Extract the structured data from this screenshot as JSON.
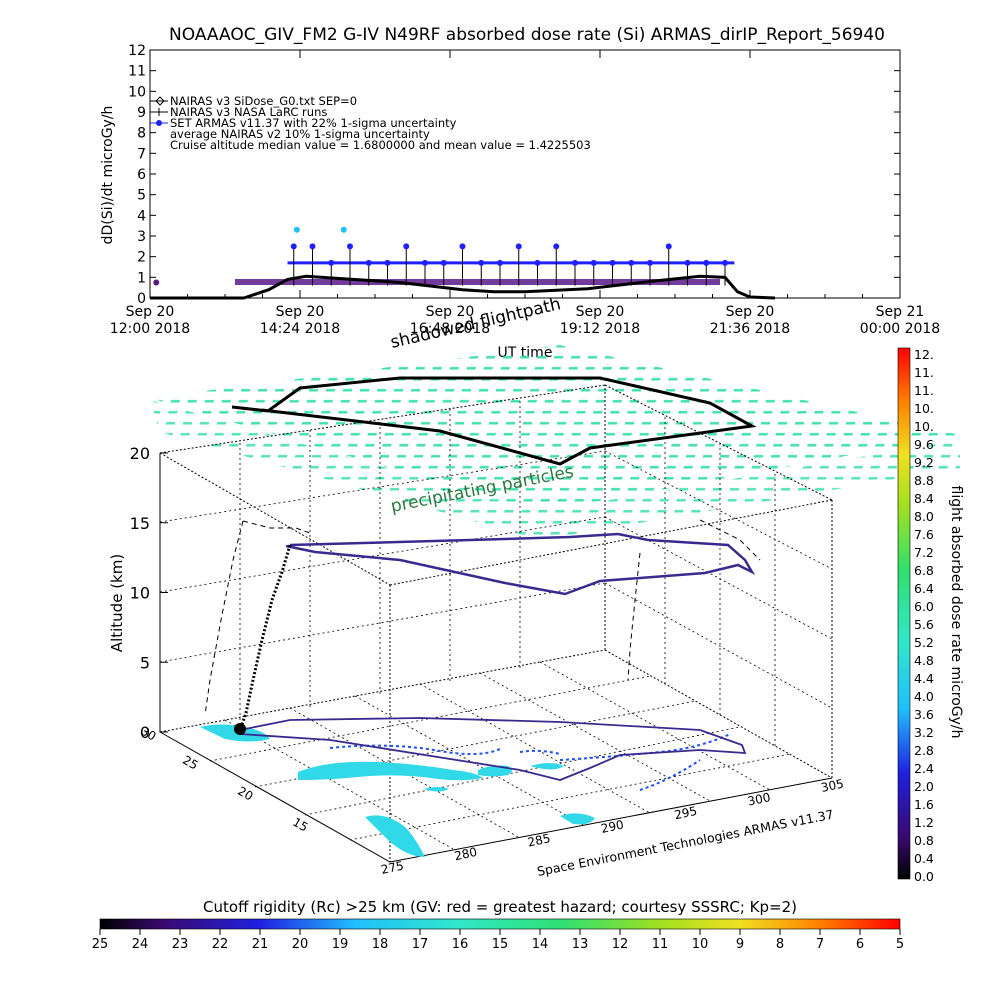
{
  "title": "NOAAAOC_GIV_FM2 G-IV    N49RF  absorbed dose rate (Si) ARMAS_dirIP_Report_56940",
  "chart_data": [
    {
      "type": "scatter",
      "ylabel": "dD(Si)/dt microGy/h",
      "xlabel": "UT time",
      "ylim": [
        0,
        12
      ],
      "yticks": [
        "0",
        "1",
        "2",
        "3",
        "4",
        "5",
        "6",
        "7",
        "8",
        "9",
        "10",
        "11",
        "12"
      ],
      "xticks": [
        {
          "h": 12.0,
          "d": "Sep 20",
          "t": "12:00  2018"
        },
        {
          "h": 14.4,
          "d": "Sep 20",
          "t": "14:24  2018"
        },
        {
          "h": 16.8,
          "d": "Sep 20",
          "t": "16:48  2018"
        },
        {
          "h": 19.2,
          "d": "Sep 20",
          "t": "19:12  2018"
        },
        {
          "h": 21.6,
          "d": "Sep 20",
          "t": "21:36  2018"
        },
        {
          "h": 24.0,
          "d": "Sep 21",
          "t": "00:00  2018"
        }
      ],
      "xlim_hours": [
        12.0,
        24.0
      ],
      "legend": [
        "NAIRAS v3 SiDose_G0.txt SEP=0",
        "NAIRAS v3 NASA LaRC runs",
        "SET ARMAS v11.37 with 22% 1-sigma uncertainty",
        "average NAIRAS v2 10% 1-sigma uncertainty",
        "Cruise altitude median value =    1.6800000 and mean value =    1.4225503"
      ],
      "series": [
        {
          "name": "NAIRAS v3 SiDose_G0.txt SEP=0",
          "color": "#000000",
          "x_hours": [
            12.0,
            13.5,
            13.9,
            14.2,
            14.5,
            15.0,
            16.0,
            17.0,
            17.5,
            18.0,
            19.0,
            20.0,
            20.8,
            21.2,
            21.4,
            21.6,
            22.0
          ],
          "y": [
            0.0,
            0.0,
            0.4,
            0.9,
            1.05,
            0.95,
            0.75,
            0.4,
            0.3,
            0.3,
            0.45,
            0.8,
            1.05,
            1.0,
            0.3,
            0.05,
            0.0
          ]
        },
        {
          "name": "SET ARMAS v11.37 with 22% 1-sigma uncertainty",
          "color": "#2020ff",
          "x_hours": [
            14.3,
            14.6,
            14.9,
            15.2,
            15.5,
            15.8,
            16.1,
            16.4,
            16.7,
            17.0,
            17.3,
            17.6,
            17.9,
            18.2,
            18.5,
            18.8,
            19.1,
            19.4,
            19.7,
            20.0,
            20.3,
            20.6,
            20.9,
            21.2
          ],
          "y": [
            2.5,
            2.5,
            1.7,
            2.5,
            1.7,
            1.7,
            2.5,
            1.7,
            1.7,
            2.5,
            1.7,
            1.7,
            2.5,
            1.7,
            2.5,
            1.7,
            1.7,
            1.7,
            1.7,
            1.7,
            2.5,
            1.7,
            1.7,
            1.7
          ]
        }
      ]
    },
    {
      "type": "scatter",
      "subtype": "3d-trajectory",
      "zlabel": "Altitude (km)",
      "zticks": [
        "0",
        "5",
        "10",
        "15",
        "20"
      ],
      "lat_ticks": [
        "30",
        "25",
        "20",
        "15"
      ],
      "lon_ticks": [
        "275",
        "280",
        "285",
        "290",
        "295",
        "300",
        "305"
      ],
      "annotations": [
        "shadowed flightpath",
        "precipitating particles",
        "Space Environment Technologies ARMAS v11.37"
      ]
    }
  ],
  "colorbar_right": {
    "label": "flight absorbed dose rate microGy/h",
    "ticks": [
      "12.",
      "11.",
      "11.",
      "10.",
      "10.",
      "9.6",
      "9.2",
      "8.8",
      "8.4",
      "8.0",
      "7.6",
      "7.2",
      "6.8",
      "6.4",
      "6.0",
      "5.6",
      "5.2",
      "4.8",
      "4.4",
      "4.0",
      "3.6",
      "3.2",
      "2.8",
      "2.4",
      "2.0",
      "1.6",
      "1.2",
      "0.8",
      "0.4",
      "0.0"
    ]
  },
  "colorbar_bottom": {
    "label": "Cutoff rigidity (Rc) >25 km (GV: red = greatest hazard; courtesy SSSRC; Kp=2)",
    "ticks": [
      "25",
      "24",
      "23",
      "22",
      "21",
      "20",
      "19",
      "18",
      "17",
      "16",
      "15",
      "14",
      "13",
      "12",
      "11",
      "10",
      "9",
      "8",
      "7",
      "6",
      "5"
    ]
  },
  "colors": {
    "armas": "#2020ff",
    "nairas_v2": "#5a1a8a",
    "flightpath": "#3a2a90",
    "particles": "#40e0b0",
    "land": "#30d8e8"
  }
}
